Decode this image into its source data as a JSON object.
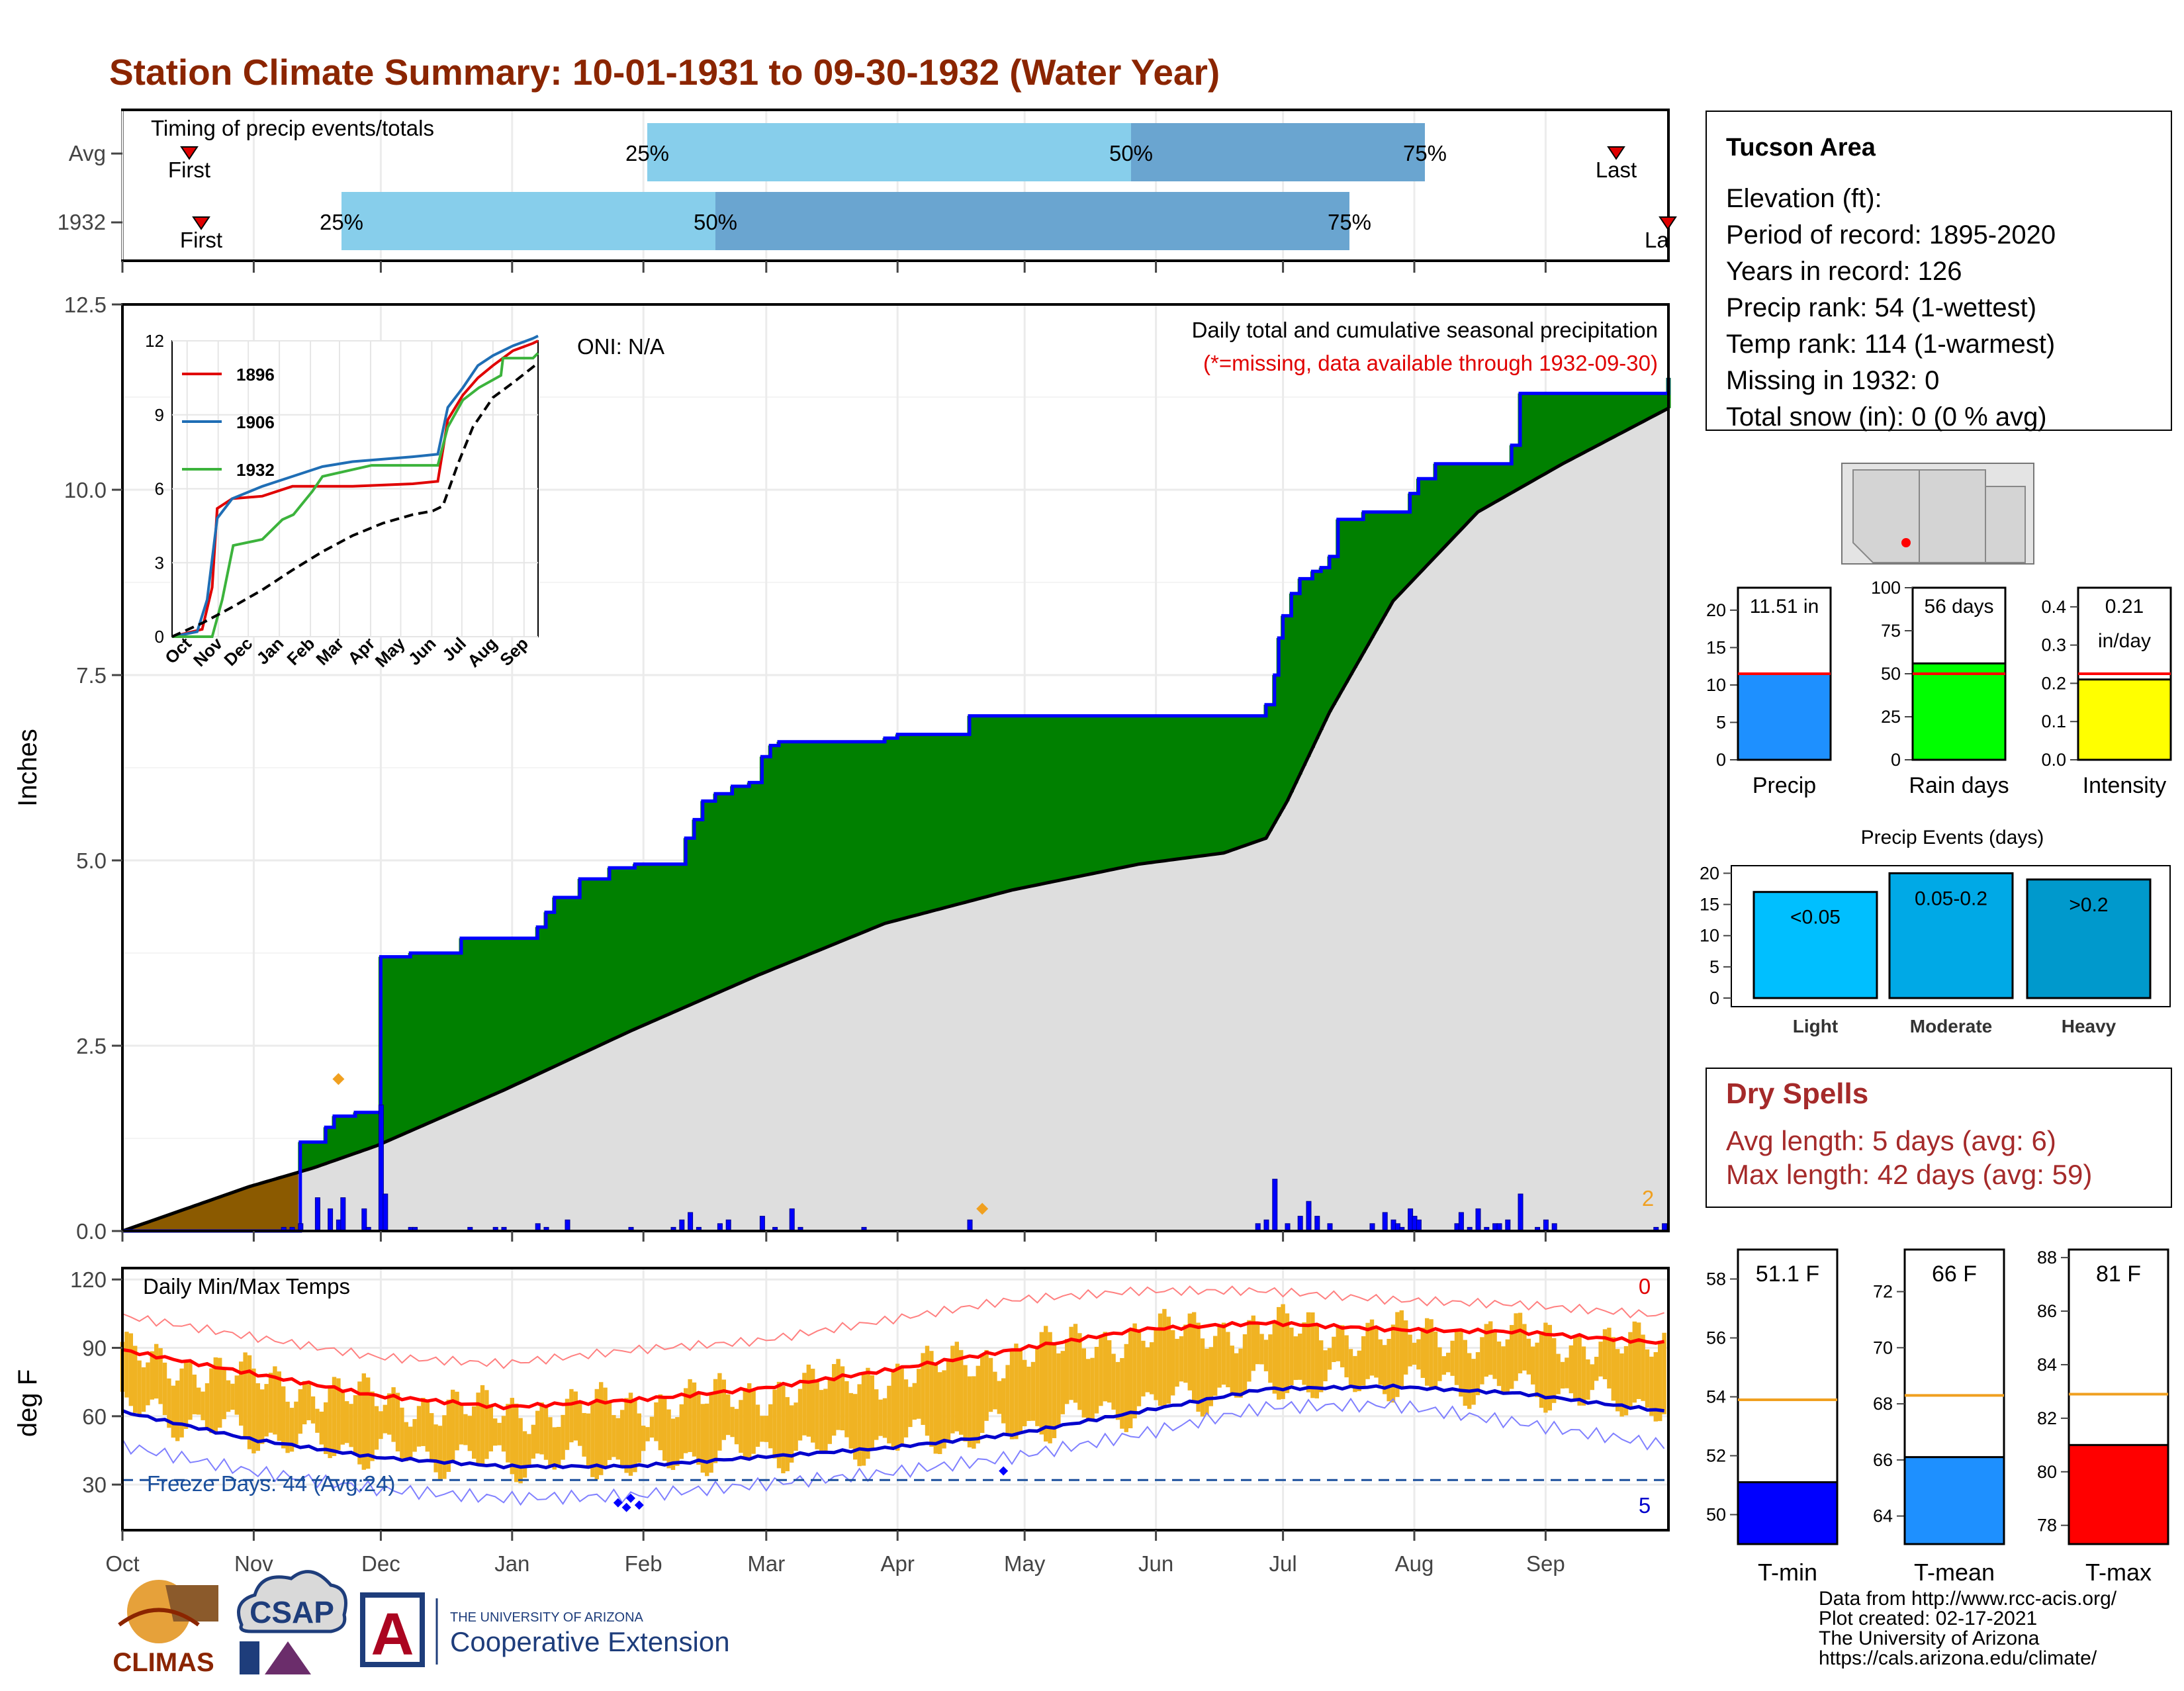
{
  "title": "Station Climate Summary: 10-01-1931 to 09-30-1932 (Water Year)",
  "colors": {
    "title": "#8b2500",
    "cum_fill": "#008000",
    "deficit_fill": "#8b5a00",
    "avg_fill": "#dedede",
    "precip_bars": "#0000ff",
    "temp_bars": "#f0b323",
    "tmax_avg": "#ff0000",
    "tmin_avg": "#0000cc",
    "light_blue": "#87ceeb",
    "mid_blue": "#6aa5d0",
    "dry_spells": "#a52a2a"
  },
  "months": [
    "Oct",
    "Nov",
    "Dec",
    "Jan",
    "Feb",
    "Mar",
    "Apr",
    "May",
    "Jun",
    "Jul",
    "Aug",
    "Sep"
  ],
  "timing": {
    "title": "Timing of precip events/totals",
    "rows": [
      {
        "label": "Avg",
        "first_label": "First",
        "last_label": "Last",
        "p25": "25%",
        "p50": "50%",
        "p75": "75%"
      },
      {
        "label": "1932",
        "first_label": "First",
        "last_label": "La",
        "p25": "25%",
        "p50": "50%",
        "p75": "75%"
      }
    ]
  },
  "main": {
    "ylabel": "Inches",
    "yticks": [
      "0.0",
      "2.5",
      "5.0",
      "7.5",
      "10.0",
      "12.5"
    ],
    "oni": "ONI: N/A",
    "subtitle": "Daily total and cumulative seasonal precipitation",
    "missing_note": "(*=missing, data available through 1932-09-30)",
    "count_label": "2"
  },
  "inset": {
    "yticks": [
      "0",
      "3",
      "6",
      "9",
      "12"
    ],
    "months": [
      "Oct",
      "Nov",
      "Dec",
      "Jan",
      "Feb",
      "Mar",
      "Apr",
      "May",
      "Jun",
      "Jul",
      "Aug",
      "Sep"
    ],
    "legend": [
      "1896",
      "1906",
      "1932"
    ]
  },
  "temps": {
    "title": "Daily Min/Max Temps",
    "ylabel": "deg F",
    "yticks": [
      "30",
      "60",
      "90",
      "120"
    ],
    "freeze": "Freeze Days: 44 (Avg:24)",
    "top_count": "0",
    "bottom_count": "5"
  },
  "info": {
    "station": "Tucson Area",
    "lines": [
      "Elevation (ft):",
      "Period of record: 1895-2020",
      "Years in record: 126",
      "Precip rank: 54 (1-wettest)",
      "Temp rank: 114 (1-warmest)",
      "Missing in 1932: 0",
      "Total snow (in): 0 (0 % avg)"
    ]
  },
  "mini_bars": [
    {
      "name": "Precip",
      "value_label": "11.51 in",
      "ticks": [
        "0",
        "5",
        "10",
        "15",
        "20"
      ],
      "value": 11.51,
      "avg": 11.5,
      "max": 23,
      "color": "#1e90ff"
    },
    {
      "name": "Rain days",
      "value_label": "56 days",
      "ticks": [
        "0",
        "25",
        "50",
        "75",
        "100"
      ],
      "value": 56,
      "avg": 50,
      "max": 100,
      "color": "#00ff00"
    },
    {
      "name": "Intensity",
      "value_label": "0.21",
      "value_label2": "in/day",
      "ticks": [
        "0.0",
        "0.1",
        "0.2",
        "0.3",
        "0.4"
      ],
      "value": 0.21,
      "avg": 0.225,
      "max": 0.45,
      "color": "#ffff00"
    }
  ],
  "events": {
    "title": "Precip Events (days)",
    "ticks": [
      "0",
      "5",
      "10",
      "15",
      "20"
    ],
    "bars": [
      {
        "category": "Light",
        "label": "<0.05",
        "value": 17,
        "color": "#00bfff"
      },
      {
        "category": "Moderate",
        "label": "0.05-0.2",
        "value": 20,
        "color": "#00a9e6"
      },
      {
        "category": "Heavy",
        "label": ">0.2",
        "value": 19,
        "color": "#0099cc"
      }
    ]
  },
  "dry_spells": {
    "title": "Dry Spells",
    "avg_line": "Avg length: 5 days (avg: 6)",
    "max_line": "Max length: 42 days (avg: 59)"
  },
  "temp_bars": [
    {
      "name": "T-min",
      "value_label": "51.1 F",
      "ticks": [
        "50",
        "52",
        "54",
        "56",
        "58"
      ],
      "value": 51.1,
      "avg": 53.9,
      "min": 49,
      "max": 59,
      "color": "#0000ff"
    },
    {
      "name": "T-mean",
      "value_label": "66 F",
      "ticks": [
        "64",
        "66",
        "68",
        "70",
        "72"
      ],
      "value": 66.1,
      "avg": 68.3,
      "min": 63,
      "max": 73.5,
      "color": "#1e90ff"
    },
    {
      "name": "T-max",
      "value_label": "81 F",
      "ticks": [
        "78",
        "80",
        "82",
        "84",
        "86",
        "88"
      ],
      "value": 81,
      "avg": 82.9,
      "min": 77.3,
      "max": 88.3,
      "color": "#ff0000"
    }
  ],
  "credits": [
    "Data from http://www.rcc-acis.org/",
    "Plot created: 02-17-2021",
    "The University of Arizona",
    "https://cals.arizona.edu/climate/"
  ],
  "logos": {
    "climas": "CLIMAS",
    "csap": "CSAP",
    "ua_small": "THE UNIVERSITY OF ARIZONA",
    "ua_large": "Cooperative Extension",
    "ua_letter": "A"
  },
  "chart_data": [
    {
      "type": "area",
      "title": "Daily total and cumulative seasonal precipitation",
      "ylabel": "Inches",
      "ylim": [
        0,
        12.5
      ],
      "x_unit": "day of water year (0 = Oct 1)",
      "cumulative_1932": {
        "x": [
          0,
          40,
          42,
          48,
          50,
          55,
          60,
          61,
          68,
          70,
          80,
          90,
          98,
          100,
          102,
          108,
          110,
          112,
          115,
          121,
          130,
          133,
          135,
          137,
          140,
          144,
          148,
          151,
          153,
          155,
          160,
          170,
          180,
          183,
          185,
          190,
          199,
          200,
          210,
          220,
          230,
          240,
          250,
          265,
          270,
          272,
          273,
          274,
          276,
          278,
          281,
          283,
          285,
          287,
          293,
          302,
          304,
          306,
          310,
          320,
          328,
          330,
          335,
          340,
          345,
          350,
          355,
          360,
          365
        ],
        "y": [
          0.0,
          0.0,
          1.2,
          1.4,
          1.55,
          1.6,
          1.6,
          3.7,
          3.75,
          3.75,
          3.95,
          3.95,
          4.1,
          4.3,
          4.5,
          4.75,
          4.75,
          4.75,
          4.9,
          4.95,
          4.95,
          5.3,
          5.55,
          5.8,
          5.9,
          6.0,
          6.05,
          6.4,
          6.55,
          6.6,
          6.6,
          6.6,
          6.65,
          6.7,
          6.7,
          6.7,
          6.7,
          6.95,
          6.95,
          6.95,
          6.95,
          6.95,
          6.95,
          6.95,
          7.1,
          7.5,
          8.0,
          8.3,
          8.6,
          8.8,
          8.9,
          8.95,
          9.1,
          9.6,
          9.7,
          9.7,
          9.95,
          10.15,
          10.35,
          10.35,
          10.6,
          11.3,
          11.3,
          11.3,
          11.3,
          11.3,
          11.3,
          11.3,
          11.51
        ]
      },
      "average_cumulative": {
        "x": [
          0,
          30,
          45,
          60,
          90,
          120,
          150,
          180,
          210,
          240,
          260,
          270,
          275,
          285,
          300,
          320,
          340,
          365
        ],
        "y": [
          0.0,
          0.6,
          0.85,
          1.15,
          1.9,
          2.7,
          3.45,
          4.15,
          4.6,
          4.95,
          5.1,
          5.3,
          5.8,
          7.0,
          8.5,
          9.7,
          10.35,
          11.1
        ]
      },
      "daily_precip": {
        "x": [
          38,
          40,
          42,
          46,
          49,
          51,
          52,
          57,
          58,
          61,
          62,
          68,
          69,
          82,
          88,
          90,
          98,
          100,
          105,
          120,
          130,
          132,
          134,
          136,
          141,
          143,
          151,
          154,
          158,
          160,
          175,
          200,
          268,
          270,
          272,
          275,
          278,
          280,
          282,
          285,
          295,
          298,
          300,
          301,
          302,
          304,
          305,
          306,
          315,
          316,
          318,
          320,
          322,
          324,
          325,
          327,
          330,
          334,
          336,
          338,
          362,
          364
        ],
        "y": [
          0.05,
          0.05,
          0.1,
          0.45,
          0.3,
          0.15,
          0.45,
          0.3,
          0.05,
          1.7,
          0.5,
          0.05,
          0.05,
          0.05,
          0.05,
          0.05,
          0.1,
          0.05,
          0.15,
          0.05,
          0.05,
          0.15,
          0.25,
          0.05,
          0.1,
          0.15,
          0.2,
          0.05,
          0.3,
          0.05,
          0.05,
          0.15,
          0.1,
          0.15,
          0.7,
          0.1,
          0.2,
          0.4,
          0.2,
          0.1,
          0.1,
          0.25,
          0.15,
          0.1,
          0.05,
          0.3,
          0.2,
          0.15,
          0.1,
          0.25,
          0.05,
          0.3,
          0.05,
          0.1,
          0.1,
          0.15,
          0.5,
          0.05,
          0.15,
          0.1,
          0.05,
          0.1
        ]
      },
      "markers": {
        "x": [
          51,
          203
        ],
        "y": [
          2.05,
          0.3
        ]
      }
    },
    {
      "type": "line",
      "title": "inset cumulative precipitation",
      "ylim": [
        0,
        12
      ],
      "series": [
        {
          "name": "1896",
          "x": [
            0,
            30,
            40,
            45,
            60,
            90,
            120,
            150,
            180,
            240,
            265,
            275,
            290,
            305,
            320,
            340,
            360,
            365
          ],
          "y": [
            0.0,
            0.3,
            2.0,
            5.2,
            5.6,
            5.7,
            6.1,
            6.1,
            6.1,
            6.2,
            6.3,
            8.8,
            9.8,
            10.5,
            11.0,
            11.6,
            11.9,
            12.0
          ]
        },
        {
          "name": "1906",
          "x": [
            0,
            25,
            35,
            45,
            60,
            90,
            120,
            150,
            180,
            240,
            265,
            275,
            290,
            305,
            320,
            340,
            360,
            365
          ],
          "y": [
            0.0,
            0.2,
            1.5,
            4.8,
            5.6,
            6.1,
            6.5,
            6.9,
            7.1,
            7.3,
            7.4,
            9.3,
            10.1,
            11.0,
            11.4,
            11.8,
            12.1,
            12.2
          ]
        },
        {
          "name": "1932",
          "x": [
            0,
            40,
            50,
            61,
            90,
            110,
            121,
            140,
            150,
            199,
            265,
            275,
            290,
            306,
            328,
            330,
            360,
            365
          ],
          "y": [
            0.0,
            0.0,
            1.5,
            3.7,
            3.95,
            4.75,
            4.95,
            5.9,
            6.5,
            6.95,
            6.95,
            8.5,
            9.6,
            10.1,
            10.6,
            11.3,
            11.3,
            11.5
          ]
        },
        {
          "name": "average",
          "x": [
            0,
            30,
            60,
            90,
            120,
            150,
            180,
            210,
            240,
            260,
            270,
            285,
            300,
            320,
            340,
            365
          ],
          "y": [
            0.0,
            0.55,
            1.2,
            1.9,
            2.7,
            3.45,
            4.1,
            4.6,
            4.95,
            5.1,
            5.3,
            7.0,
            8.5,
            9.7,
            10.3,
            11.1
          ]
        }
      ]
    },
    {
      "type": "line",
      "title": "Daily Min/Max Temps",
      "ylabel": "deg F",
      "ylim": [
        10,
        125
      ],
      "normal_max": {
        "x": [
          0,
          30,
          60,
          90,
          120,
          150,
          180,
          210,
          240,
          270,
          300,
          330,
          365
        ],
        "y": [
          89,
          79,
          69,
          64,
          67,
          72,
          80,
          89,
          98,
          101,
          98,
          97,
          92
        ]
      },
      "normal_min": {
        "x": [
          0,
          30,
          60,
          90,
          120,
          150,
          180,
          210,
          240,
          270,
          300,
          330,
          365
        ],
        "y": [
          62,
          50,
          42,
          38,
          38,
          42,
          46,
          52,
          62,
          72,
          73,
          70,
          62
        ]
      },
      "record_high": {
        "x": [
          0,
          30,
          60,
          90,
          120,
          150,
          180,
          210,
          240,
          270,
          300,
          330,
          365
        ],
        "y": [
          104,
          95,
          86,
          83,
          89,
          93,
          102,
          111,
          115,
          115,
          111,
          109,
          104
        ]
      },
      "record_low": {
        "x": [
          0,
          30,
          60,
          90,
          120,
          150,
          180,
          210,
          240,
          270,
          300,
          330,
          365
        ],
        "y": [
          47,
          36,
          28,
          24,
          25,
          30,
          35,
          42,
          52,
          64,
          65,
          57,
          47
        ]
      },
      "freeze_line": 32,
      "daily_lows_range": [
        30,
        76
      ],
      "daily_highs_range": [
        58,
        106
      ],
      "markers": {
        "x": [
          117,
          119,
          120,
          122,
          208
        ],
        "y": [
          22,
          20,
          24,
          21,
          36
        ]
      }
    },
    {
      "type": "bar",
      "title": "Precip Events (days)",
      "categories": [
        "Light",
        "Moderate",
        "Heavy"
      ],
      "values": [
        17,
        20,
        19
      ],
      "ylim": [
        0,
        20
      ]
    }
  ]
}
